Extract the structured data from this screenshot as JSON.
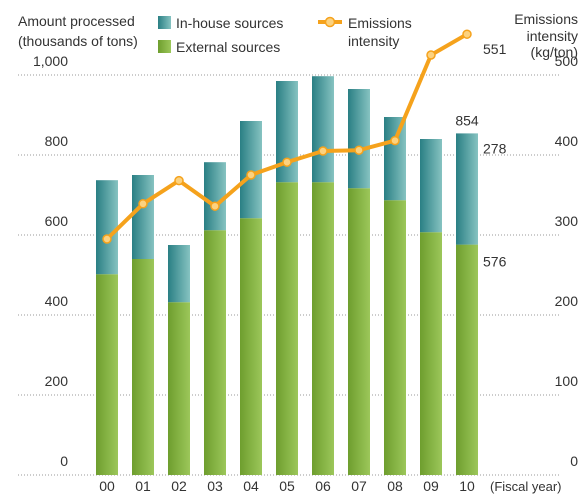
{
  "chart_data": {
    "type": "bar",
    "stacked": true,
    "y_label": [
      "Amount processed",
      "(thousands of tons)"
    ],
    "y2_label": [
      "Emissions",
      "intensity",
      "(kg/ton)"
    ],
    "x_label": "(Fiscal year)",
    "categories": [
      "00",
      "01",
      "02",
      "03",
      "04",
      "05",
      "06",
      "07",
      "08",
      "09",
      "10"
    ],
    "series": [
      {
        "name": "In-house sources",
        "type": "bar",
        "color": "#2f8a8c",
        "values": [
          235,
          210,
          143,
          170,
          243,
          253,
          265,
          248,
          208,
          233,
          278
        ]
      },
      {
        "name": "External sources",
        "type": "bar",
        "color": "#7fad3c",
        "values": [
          502,
          540,
          432,
          612,
          642,
          732,
          732,
          717,
          687,
          607,
          576
        ]
      },
      {
        "name": "Emissions intensity",
        "type": "line",
        "axis": "y2",
        "color": "#f5a21c",
        "values": [
          295,
          339,
          368,
          336,
          375,
          391,
          405,
          406,
          418,
          525,
          551
        ]
      }
    ],
    "annotation": "854",
    "ylim": [
      0,
      1000
    ],
    "yticks": [
      0,
      200,
      400,
      600,
      800,
      {
        "value": 1000,
        "label": "1,000"
      }
    ],
    "y2lim": [
      0,
      500
    ],
    "y2ticks": [
      0,
      100,
      200,
      300,
      400,
      500
    ],
    "grid": true
  }
}
